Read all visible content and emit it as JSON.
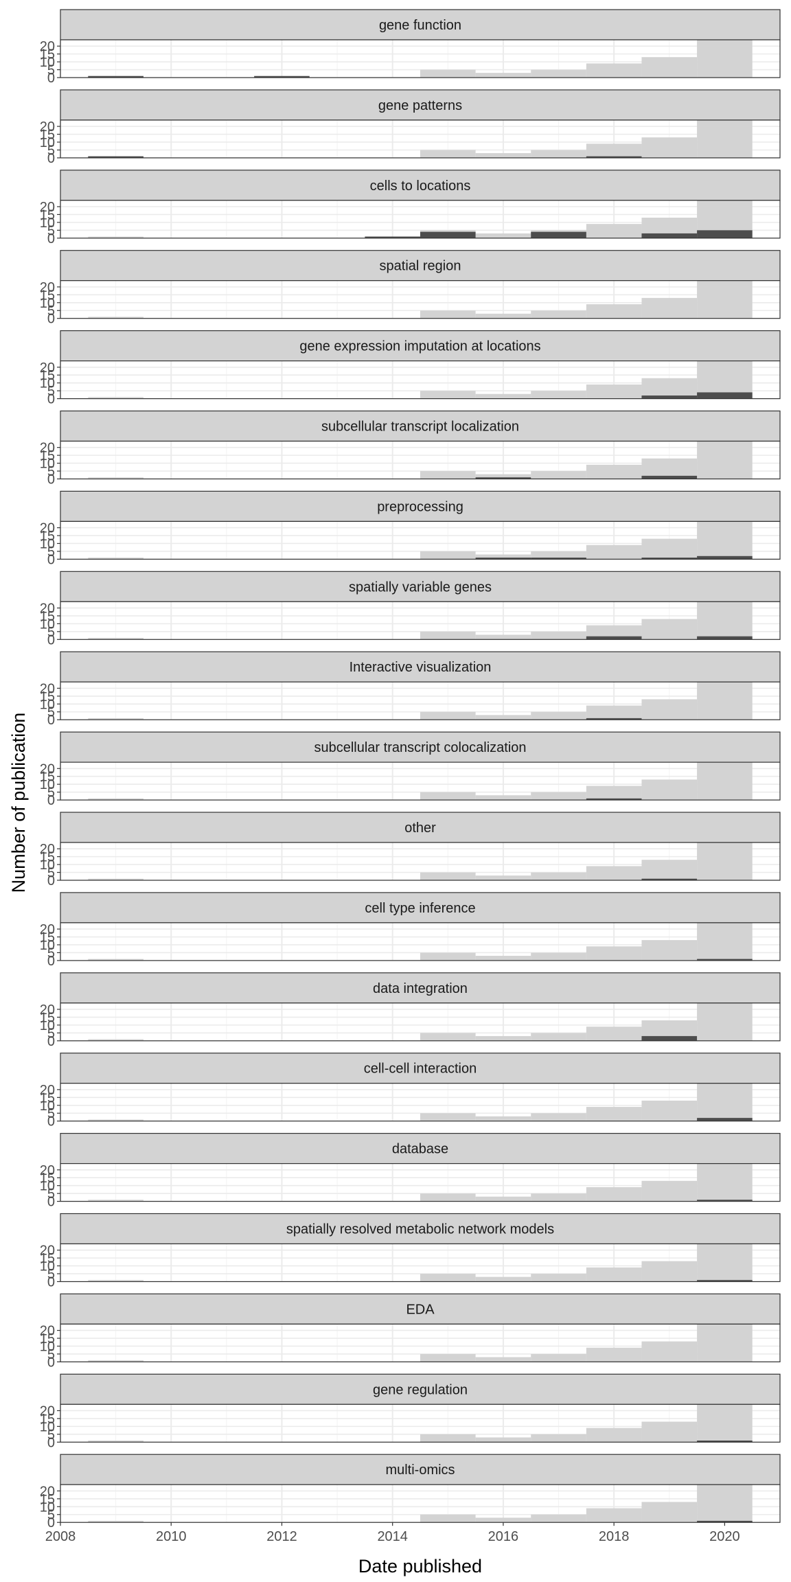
{
  "chart_data": {
    "type": "bar",
    "xlabel": "Date published",
    "ylabel": "Number of publication",
    "x_ticks": [
      2008,
      2010,
      2012,
      2014,
      2016,
      2018,
      2020
    ],
    "y_ticks": [
      0,
      5,
      10,
      15,
      20
    ],
    "xlim": [
      2008,
      2021
    ],
    "ylim": [
      0,
      24
    ],
    "bins": [
      2009,
      2010,
      2011,
      2012,
      2013,
      2014,
      2015,
      2016,
      2017,
      2018,
      2019,
      2020
    ],
    "background_series": {
      "values": [
        1,
        0,
        0,
        0,
        0,
        0,
        5,
        3,
        5,
        9,
        13,
        24
      ],
      "color": "#d3d3d3"
    },
    "highlight_color": "#4d4d4d",
    "strip_fill": "#d3d3d3",
    "facets": [
      {
        "label": "gene function",
        "values": [
          1,
          0,
          0,
          1,
          0,
          0,
          0,
          0,
          0,
          0,
          0,
          0
        ]
      },
      {
        "label": "gene patterns",
        "values": [
          1,
          0,
          0,
          0,
          0,
          0,
          0,
          0,
          0,
          1,
          0,
          0
        ]
      },
      {
        "label": "cells to locations",
        "values": [
          0,
          0,
          0,
          0,
          0,
          1,
          4,
          0,
          4,
          0,
          3,
          5
        ]
      },
      {
        "label": "spatial region",
        "values": [
          0,
          0,
          0,
          0,
          0,
          0,
          0,
          0,
          0,
          0,
          0,
          0
        ]
      },
      {
        "label": "gene expression imputation at locations",
        "values": [
          0,
          0,
          0,
          0,
          0,
          0,
          0,
          0,
          0,
          0,
          2,
          4
        ]
      },
      {
        "label": "subcellular transcript localization",
        "values": [
          0,
          0,
          0,
          0,
          0,
          0,
          0,
          1,
          0,
          0,
          2,
          0
        ]
      },
      {
        "label": "preprocessing",
        "values": [
          0,
          0,
          0,
          0,
          0,
          0,
          0,
          1,
          1,
          0,
          1,
          2
        ]
      },
      {
        "label": "spatially variable genes",
        "values": [
          0,
          0,
          0,
          0,
          0,
          0,
          0,
          0,
          0,
          2,
          0,
          2
        ]
      },
      {
        "label": "Interactive visualization",
        "values": [
          0,
          0,
          0,
          0,
          0,
          0,
          0,
          0,
          0,
          1,
          0,
          0
        ]
      },
      {
        "label": "subcellular transcript colocalization",
        "values": [
          0,
          0,
          0,
          0,
          0,
          0,
          0,
          0,
          0,
          1,
          0,
          0
        ]
      },
      {
        "label": "other",
        "values": [
          0,
          0,
          0,
          0,
          0,
          0,
          0,
          0,
          0,
          0,
          1,
          0
        ]
      },
      {
        "label": "cell type inference",
        "values": [
          0,
          0,
          0,
          0,
          0,
          0,
          0,
          0,
          0,
          0,
          0,
          1
        ]
      },
      {
        "label": "data integration",
        "values": [
          0,
          0,
          0,
          0,
          0,
          0,
          0,
          0,
          0,
          0,
          3,
          0
        ]
      },
      {
        "label": "cell-cell interaction",
        "values": [
          0,
          0,
          0,
          0,
          0,
          0,
          0,
          0,
          0,
          0,
          0,
          2
        ]
      },
      {
        "label": "database",
        "values": [
          0,
          0,
          0,
          0,
          0,
          0,
          0,
          0,
          0,
          0,
          0,
          1
        ]
      },
      {
        "label": "spatially resolved metabolic network models",
        "values": [
          0,
          0,
          0,
          0,
          0,
          0,
          0,
          0,
          0,
          0,
          0,
          1
        ]
      },
      {
        "label": "EDA",
        "values": [
          0,
          0,
          0,
          0,
          0,
          0,
          0,
          0,
          0,
          0,
          0,
          0
        ]
      },
      {
        "label": "gene regulation",
        "values": [
          0,
          0,
          0,
          0,
          0,
          0,
          0,
          0,
          0,
          0,
          0,
          1
        ]
      },
      {
        "label": "multi-omics",
        "values": [
          0,
          0,
          0,
          0,
          0,
          0,
          0,
          0,
          0,
          0,
          0,
          1
        ]
      }
    ]
  }
}
